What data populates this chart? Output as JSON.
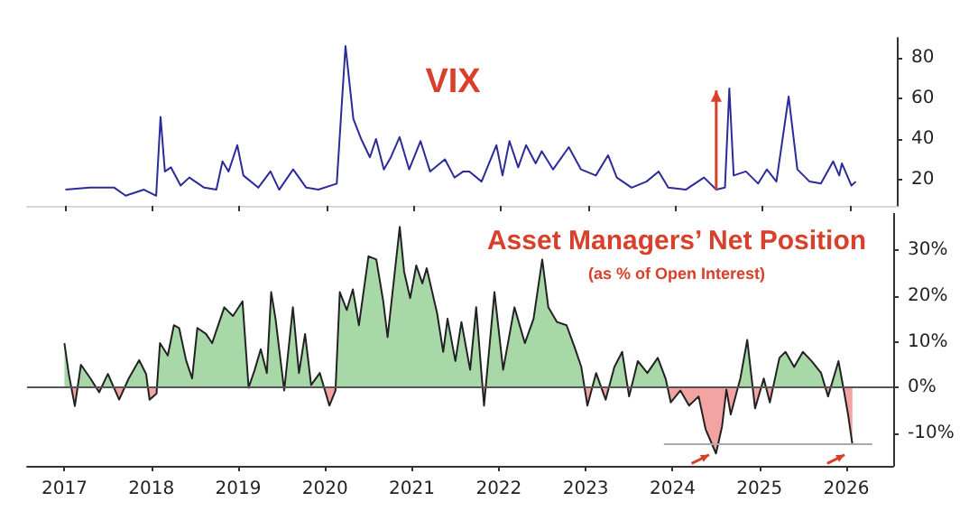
{
  "chart_data": [
    {
      "type": "line",
      "title": "VIX",
      "x": [
        2017.01,
        2017.29,
        2017.57,
        2017.7,
        2017.91,
        2018.05,
        2018.1,
        2018.15,
        2018.22,
        2018.33,
        2018.43,
        2018.6,
        2018.74,
        2018.81,
        2018.88,
        2018.98,
        2019.05,
        2019.22,
        2019.36,
        2019.46,
        2019.62,
        2019.77,
        2019.91,
        2020.12,
        2020.22,
        2020.31,
        2020.4,
        2020.5,
        2020.57,
        2020.66,
        2020.74,
        2020.84,
        2020.95,
        2021.08,
        2021.19,
        2021.36,
        2021.47,
        2021.57,
        2021.64,
        2021.78,
        2021.95,
        2022.02,
        2022.1,
        2022.2,
        2022.29,
        2022.4,
        2022.47,
        2022.6,
        2022.78,
        2022.92,
        2023.09,
        2023.23,
        2023.33,
        2023.5,
        2023.67,
        2023.81,
        2023.92,
        2024.12,
        2024.33,
        2024.47,
        2024.57,
        2024.62,
        2024.67,
        2024.81,
        2024.95,
        2025.05,
        2025.16,
        2025.3,
        2025.4,
        2025.54,
        2025.67,
        2025.81,
        2025.88,
        2025.91,
        2026.02,
        2026.07
      ],
      "series": [
        {
          "color": "#2b2b9a",
          "values": [
            15,
            16,
            16,
            12,
            15,
            12,
            51,
            24,
            26,
            17,
            21,
            16,
            15,
            29,
            24,
            37,
            22,
            16,
            24,
            15,
            25,
            16,
            15,
            18,
            86,
            50,
            40,
            31,
            40,
            25,
            31,
            41,
            25,
            39,
            24,
            30,
            21,
            24,
            24,
            19,
            37,
            22,
            39,
            26,
            37,
            28,
            34,
            25,
            36,
            25,
            22,
            32,
            21,
            16,
            19,
            24,
            16,
            15,
            21,
            15,
            16,
            65,
            22,
            24,
            18,
            25,
            19,
            61,
            25,
            19,
            18,
            29,
            22,
            28,
            17,
            19
          ]
        }
      ],
      "xlim": [
        2016.57,
        2026.54
      ],
      "xticks": [
        2017,
        2018,
        2019,
        2020,
        2021,
        2022,
        2023,
        2024,
        2025,
        2026
      ],
      "ylim": [
        7,
        90
      ],
      "yticks": [
        20,
        40,
        60,
        80
      ],
      "tick_labels": "y"
    },
    {
      "type": "area",
      "title": "Asset Managers’ Net Position",
      "subtitle": "(as % of Open Interest)",
      "series": [
        {
          "color": "#222222",
          "colors": [
            "#a8d8a8",
            "#a8d8a8",
            "#f4a3a3",
            "#a8d8a8",
            "#a8d8a8",
            "#f4a3a3",
            "#a8d8a8",
            "#f4a3a3",
            "#a8d8a8",
            "#a8d8a8",
            "#a8d8a8",
            "#f4a3a3",
            "#f4a3a3",
            "#a8d8a8",
            "#a8d8a8",
            "#a8d8a8",
            "#a8d8a8",
            "#a8d8a8",
            "#a8d8a8",
            "#a8d8a8",
            "#a8d8a8",
            "#a8d8a8",
            "#a8d8a8",
            "#a8d8a8",
            "#a8d8a8",
            "#a8d8a8",
            "#a8d8a8",
            "#a8d8a8",
            "#a8d8a8",
            "#a8d8a8",
            "#a8d8a8",
            "#f4a3a3",
            "#a8d8a8",
            "#a8d8a8",
            "#a8d8a8",
            "#a8d8a8",
            "#a8d8a8",
            "#f4a3a3",
            "#f4a3a3",
            "#a8d8a8",
            "#a8d8a8",
            "#a8d8a8",
            "#a8d8a8",
            "#a8d8a8",
            "#a8d8a8",
            "#a8d8a8",
            "#a8d8a8",
            "#a8d8a8",
            "#a8d8a8",
            "#a8d8a8",
            "#a8d8a8",
            "#a8d8a8",
            "#a8d8a8",
            "#a8d8a8",
            "#a8d8a8",
            "#a8d8a8",
            "#a8d8a8",
            "#a8d8a8",
            "#a8d8a8",
            "#a8d8a8",
            "#f4a3a3",
            "#a8d8a8",
            "#a8d8a8",
            "#a8d8a8",
            "#a8d8a8",
            "#a8d8a8",
            "#a8d8a8",
            "#a8d8a8",
            "#a8d8a8",
            "#a8d8a8",
            "#a8d8a8",
            "#a8d8a8",
            "#f4a3a3",
            "#a8d8a8",
            "#f4a3a3",
            "#a8d8a8",
            "#a8d8a8",
            "#f4a3a3",
            "#a8d8a8",
            "#a8d8a8",
            "#a8d8a8",
            "#a8d8a8",
            "#f4a3a3",
            "#f4a3a3",
            "#f4a3a3",
            "#f4a3a3",
            "#f4a3a3",
            "#f4a3a3",
            "#f4a3a3",
            "#f4a3a3",
            "#f4a3a3",
            "#a8d8a8",
            "#a8d8a8",
            "#f4a3a3",
            "#a8d8a8",
            "#f4a3a3",
            "#a8d8a8",
            "#a8d8a8",
            "#a8d8a8",
            "#a8d8a8",
            "#a8d8a8",
            "#a8d8a8",
            "#f4a3a3",
            "#a8d8a8",
            "#f4a3a3",
            "#f4a3a3",
            "#f4a3a3"
          ],
          "x": [
            2017.0,
            2017.05,
            2017.12,
            2017.19,
            2017.3,
            2017.4,
            2017.5,
            2017.63,
            2017.74,
            2017.86,
            2017.94,
            2017.98,
            2018.06,
            2018.1,
            2018.19,
            2018.26,
            2018.32,
            2018.4,
            2018.47,
            2018.53,
            2018.63,
            2018.7,
            2018.84,
            2018.94,
            2019.05,
            2019.12,
            2019.19,
            2019.26,
            2019.33,
            2019.38,
            2019.43,
            2019.53,
            2019.63,
            2019.7,
            2019.77,
            2019.84,
            2019.94,
            2020.05,
            2020.12,
            2020.17,
            2020.25,
            2020.32,
            2020.39,
            2020.5,
            2020.59,
            2020.67,
            2020.72,
            2020.86,
            2020.91,
            2020.98,
            2021.05,
            2021.12,
            2021.17,
            2021.29,
            2021.36,
            2021.41,
            2021.5,
            2021.57,
            2021.67,
            2021.74,
            2021.83,
            2021.95,
            2022.05,
            2022.18,
            2022.3,
            2022.4,
            2022.5,
            2022.57,
            2022.67,
            2022.78,
            2022.88,
            2022.95,
            2023.02,
            2023.12,
            2023.23,
            2023.33,
            2023.42,
            2023.5,
            2023.6,
            2023.71,
            2023.83,
            2023.92,
            2023.98,
            2024.09,
            2024.19,
            2024.3,
            2024.38,
            2024.5,
            2024.57,
            2024.62,
            2024.67,
            2024.78,
            2024.86,
            2024.95,
            2025.05,
            2025.12,
            2025.23,
            2025.3,
            2025.4,
            2025.5,
            2025.6,
            2025.71,
            2025.79,
            2025.91,
            2025.97,
            2026.02,
            2026.07
          ],
          "values": [
            9.7,
            3,
            -4,
            5,
            2,
            -1,
            3,
            -2.6,
            2,
            6,
            3,
            -2.6,
            -1.3,
            9.7,
            7,
            13.6,
            13,
            6,
            2,
            13,
            11.7,
            9.7,
            17.5,
            15.6,
            18.8,
            0,
            3.9,
            8.4,
            3.2,
            20.8,
            15,
            -0.6,
            17.5,
            3.2,
            11.7,
            0.6,
            3.2,
            -3.9,
            -0.6,
            20.8,
            16.9,
            21.4,
            13.6,
            28.6,
            27.9,
            18.8,
            11,
            35,
            25.3,
            19.5,
            26.6,
            22.7,
            26,
            16.2,
            7.8,
            15,
            5.8,
            14.3,
            3.9,
            17.5,
            -3.9,
            20.8,
            3.9,
            17.5,
            9.7,
            15,
            27.9,
            17.5,
            14.3,
            13.6,
            8.4,
            4.5,
            -3.9,
            3.2,
            -2.6,
            4.5,
            7.8,
            -1.9,
            5.8,
            3.2,
            6.5,
            2,
            -3.2,
            -0.6,
            -3.9,
            -1.9,
            -9,
            -14.3,
            -8.4,
            -0.4,
            -5.8,
            2,
            10.4,
            -4.5,
            2,
            -3.2,
            6.5,
            7.8,
            4.5,
            7.8,
            5.8,
            3.2,
            -1.9,
            5.8,
            -0.4,
            -5.8,
            -12.3
          ]
        },
        {
          "type": "line",
          "color": "#aaaaaa",
          "x": [
            2023.9,
            2026.3
          ],
          "values": [
            -12.3,
            -12.3
          ]
        }
      ],
      "ref_lines": [
        {
          "axis": "y",
          "value": 0,
          "color": "#555555"
        }
      ],
      "xlim": [
        2016.57,
        2026.54
      ],
      "xticks": [
        2017,
        2018,
        2019,
        2020,
        2021,
        2022,
        2023,
        2024,
        2025,
        2026
      ],
      "ylim": [
        -17,
        38
      ],
      "yticks": [
        {
          "value": -10,
          "label": "-10%"
        },
        {
          "value": 0,
          "label": "0%"
        },
        {
          "value": 10,
          "label": "10%"
        },
        {
          "value": 20,
          "label": "20%"
        },
        {
          "value": 30,
          "label": "30%"
        }
      ]
    }
  ]
}
